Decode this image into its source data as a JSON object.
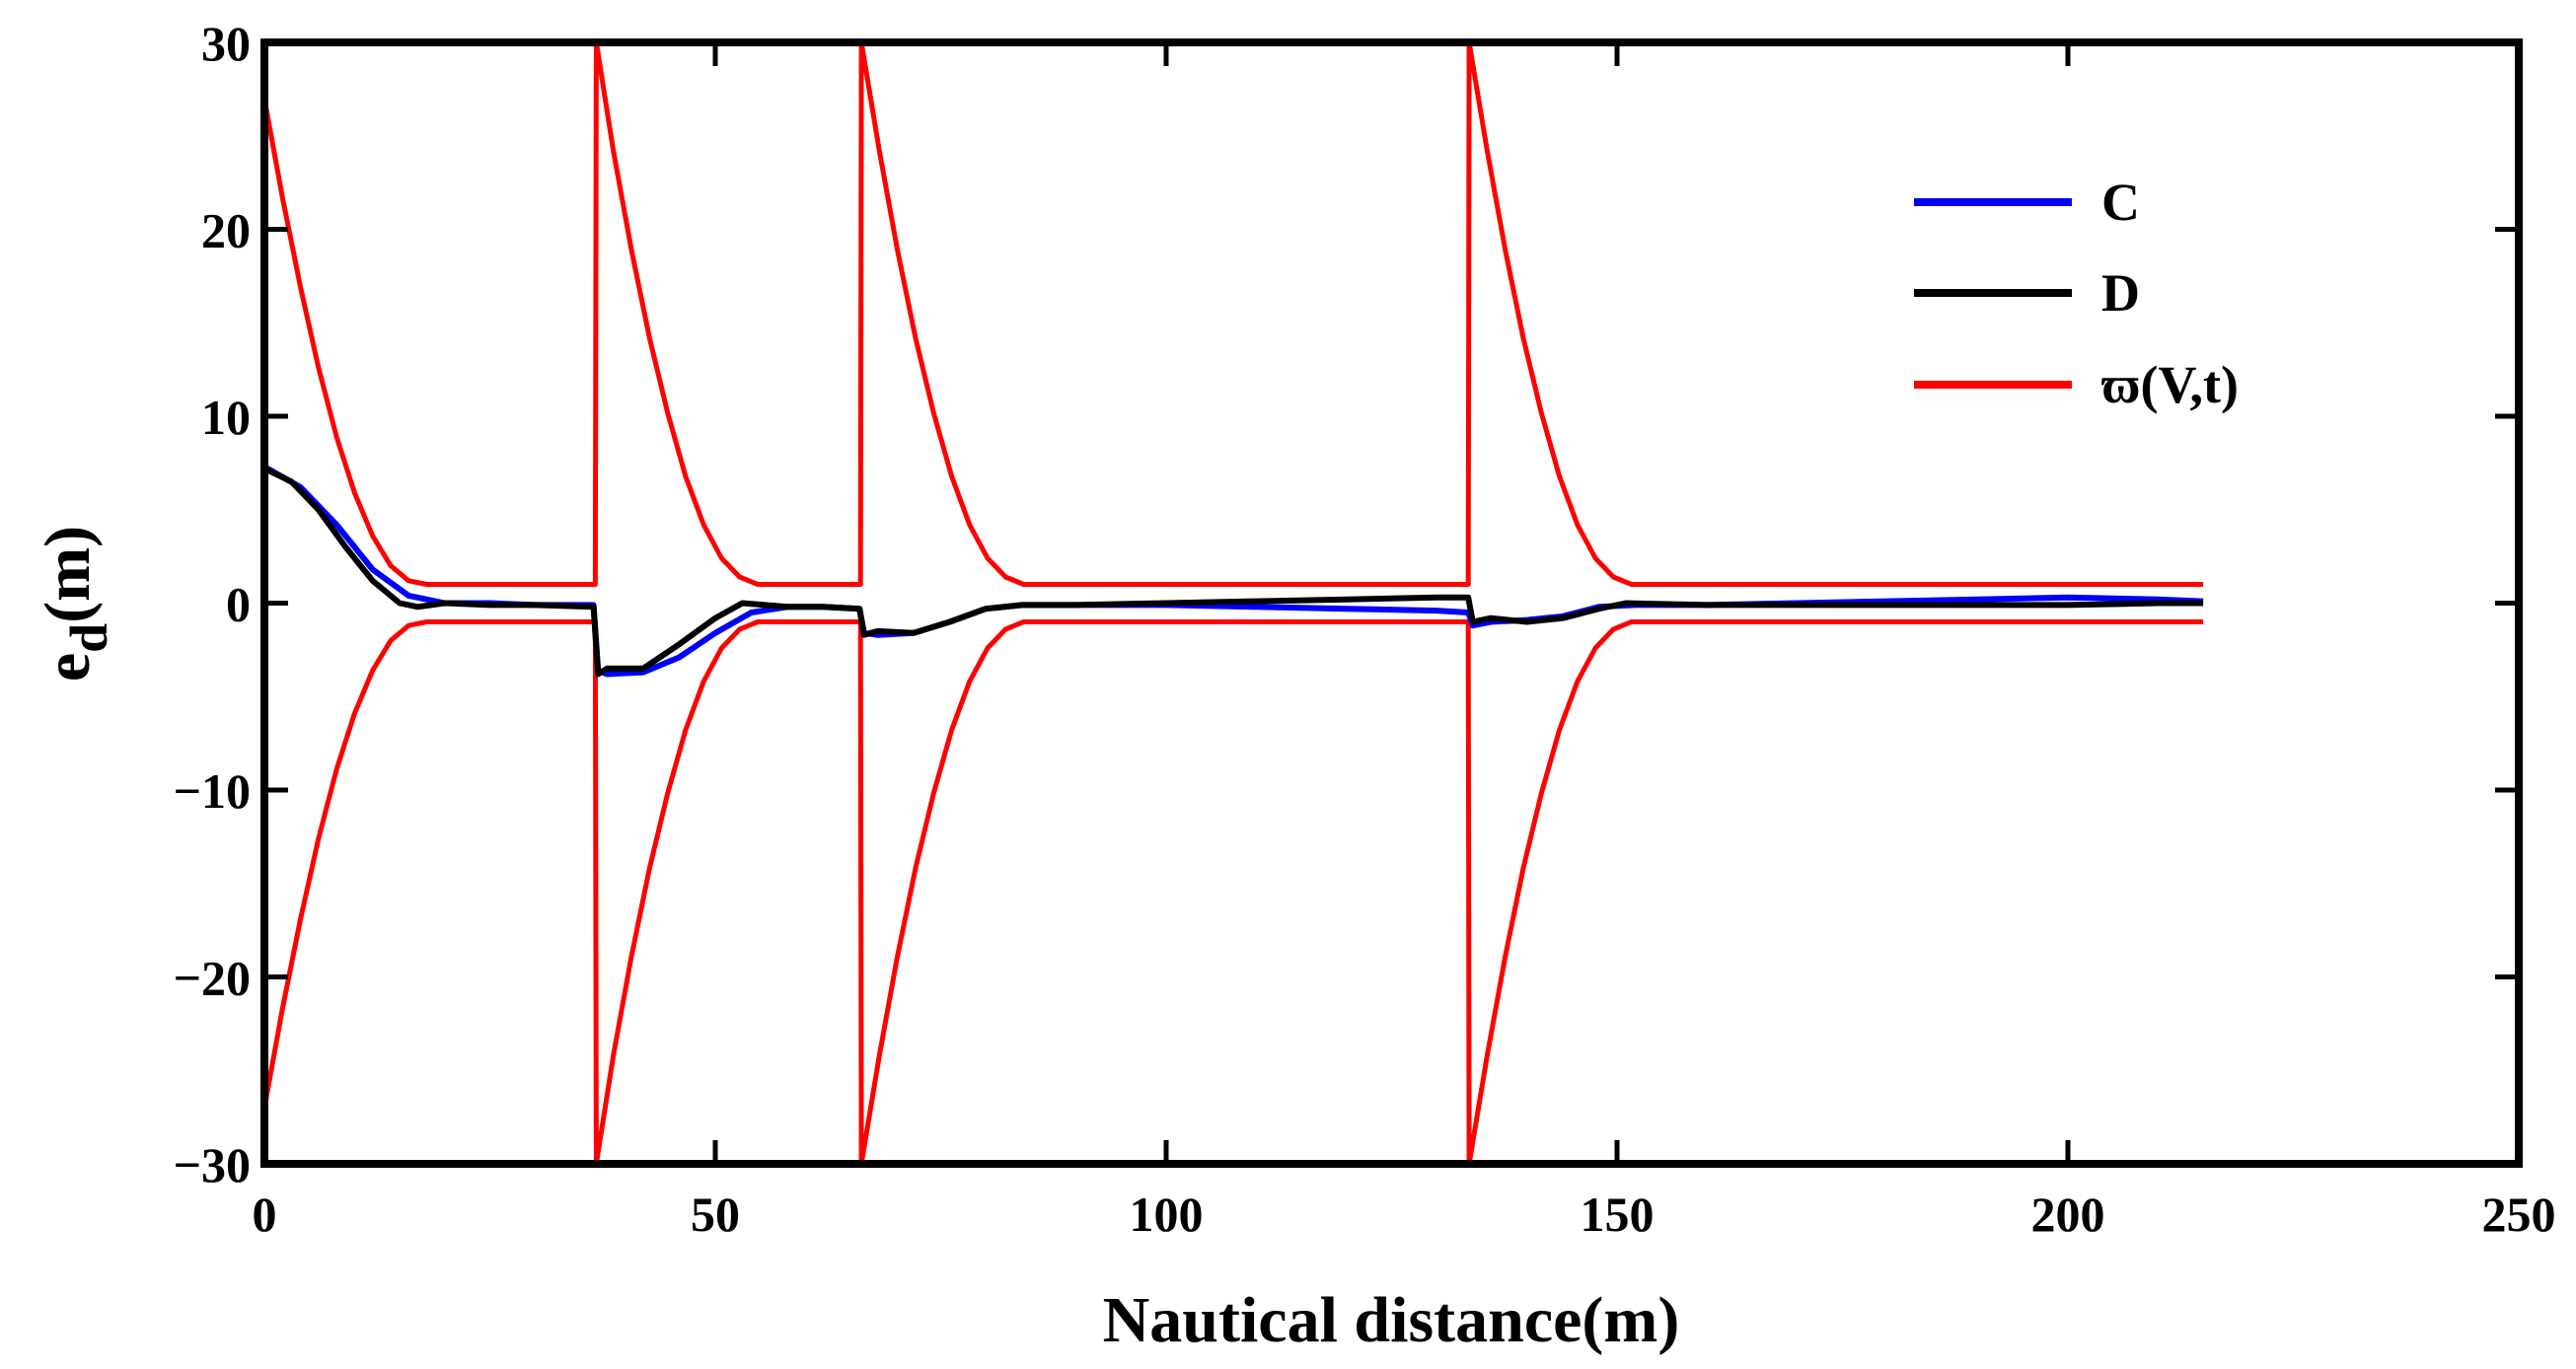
{
  "chart_data": {
    "type": "line",
    "title": "",
    "xlabel": "Nautical distance(m)",
    "ylabel": {
      "base": "e",
      "sub": "d",
      "suffix": "(m)"
    },
    "xlim": [
      0,
      250
    ],
    "ylim": [
      -30,
      30
    ],
    "xticks": [
      0,
      50,
      100,
      150,
      200,
      250
    ],
    "yticks": [
      30,
      20,
      10,
      0,
      -10,
      -20,
      -30
    ],
    "xtick_labels": [
      "0",
      "50",
      "100",
      "150",
      "200",
      "250"
    ],
    "ytick_labels": [
      "30",
      "20",
      "10",
      "0",
      "−10",
      "−20",
      "−30"
    ],
    "grid": false,
    "legend_position": "top-right",
    "series": [
      {
        "name": "C",
        "color": "#0000ff",
        "x": [
          0,
          4,
          8,
          12,
          16,
          20,
          25,
          30,
          36.5,
          37,
          38,
          42,
          46,
          50,
          54,
          58,
          62,
          66,
          66.5,
          68,
          72,
          76,
          80,
          84,
          90,
          100,
          110,
          120,
          130,
          133.5,
          134,
          136,
          140,
          144,
          148,
          152,
          160,
          170,
          180,
          190,
          200,
          210,
          215
        ],
        "y": [
          7.3,
          6.2,
          4.2,
          1.8,
          0.4,
          0.0,
          0.0,
          -0.1,
          -0.1,
          -3.6,
          -3.8,
          -3.7,
          -2.9,
          -1.6,
          -0.5,
          -0.2,
          -0.2,
          -0.3,
          -1.6,
          -1.7,
          -1.6,
          -1.0,
          -0.3,
          -0.1,
          -0.1,
          -0.1,
          -0.2,
          -0.3,
          -0.4,
          -0.5,
          -1.2,
          -1.0,
          -0.9,
          -0.7,
          -0.2,
          -0.1,
          -0.1,
          0.0,
          0.1,
          0.2,
          0.3,
          0.2,
          0.1
        ]
      },
      {
        "name": "D",
        "color": "#000000",
        "x": [
          0,
          3,
          6,
          9,
          12,
          15,
          17,
          20,
          25,
          30,
          36.5,
          37,
          38,
          42,
          46,
          50,
          53,
          58,
          62,
          66,
          66.5,
          68,
          72,
          76,
          80,
          84,
          90,
          100,
          110,
          120,
          130,
          133.5,
          134,
          136,
          140,
          144,
          148,
          151,
          160,
          170,
          180,
          190,
          200,
          210,
          215
        ],
        "y": [
          7.2,
          6.5,
          5.0,
          3.0,
          1.2,
          0.0,
          -0.2,
          0.0,
          -0.1,
          -0.1,
          -0.2,
          -3.8,
          -3.5,
          -3.5,
          -2.2,
          -0.8,
          0.0,
          -0.2,
          -0.2,
          -0.3,
          -1.7,
          -1.5,
          -1.6,
          -1.0,
          -0.3,
          -0.1,
          -0.1,
          0.0,
          0.1,
          0.2,
          0.3,
          0.3,
          -1.0,
          -0.8,
          -1.0,
          -0.8,
          -0.3,
          0.0,
          -0.1,
          -0.1,
          -0.1,
          -0.1,
          -0.1,
          0.0,
          0.0
        ]
      },
      {
        "name": "ϖ(V,t)",
        "color": "#ff0000",
        "x": [
          0,
          2,
          4,
          6,
          8,
          10,
          12,
          14,
          16,
          18,
          20,
          36.7,
          36.8,
          38.7,
          40.7,
          42.7,
          44.7,
          46.7,
          48.7,
          50.7,
          52.7,
          54.7,
          56.7,
          66.1,
          66.2,
          68.2,
          70.2,
          72.2,
          74.2,
          76.2,
          78.2,
          80.2,
          82.2,
          84.2,
          86.2,
          133.5,
          133.6,
          135.6,
          137.6,
          139.6,
          141.6,
          143.6,
          145.6,
          147.6,
          149.6,
          151.6,
          153.6,
          215
        ],
        "y_upper": [
          27.0,
          21.7,
          16.9,
          12.6,
          8.9,
          5.9,
          3.6,
          2.0,
          1.2,
          1.0,
          1.0,
          1.0,
          30.0,
          24.2,
          18.9,
          14.2,
          10.2,
          6.8,
          4.2,
          2.4,
          1.4,
          1.0,
          1.0,
          1.0,
          30.0,
          24.2,
          18.9,
          14.2,
          10.2,
          6.8,
          4.2,
          2.4,
          1.4,
          1.0,
          1.0,
          1.0,
          30.0,
          24.2,
          18.9,
          14.2,
          10.2,
          6.8,
          4.2,
          2.4,
          1.4,
          1.0,
          1.0,
          1.0
        ],
        "y_lower": [
          -27.0,
          -21.7,
          -16.9,
          -12.6,
          -8.9,
          -5.9,
          -3.6,
          -2.0,
          -1.2,
          -1.0,
          -1.0,
          -1.0,
          -30.0,
          -24.2,
          -18.9,
          -14.2,
          -10.2,
          -6.8,
          -4.2,
          -2.4,
          -1.4,
          -1.0,
          -1.0,
          -1.0,
          -30.0,
          -24.2,
          -18.9,
          -14.2,
          -10.2,
          -6.8,
          -4.2,
          -2.4,
          -1.4,
          -1.0,
          -1.0,
          -1.0,
          -30.0,
          -24.2,
          -18.9,
          -14.2,
          -10.2,
          -6.8,
          -4.2,
          -2.4,
          -1.4,
          -1.0,
          -1.0,
          -1.0
        ]
      }
    ]
  }
}
